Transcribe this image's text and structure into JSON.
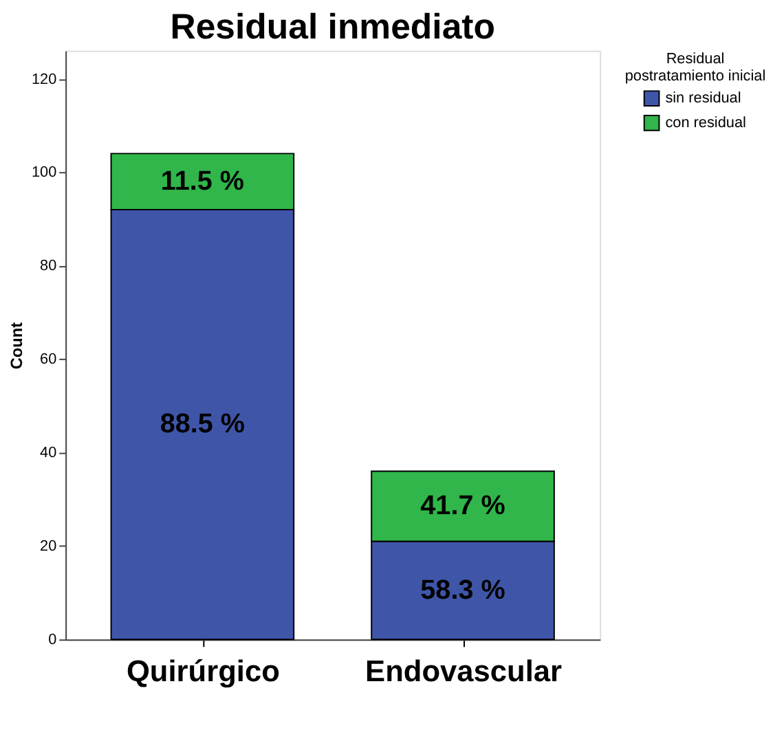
{
  "chart_data": {
    "type": "bar",
    "title": "Residual inmediato",
    "ylabel": "Count",
    "legend_title": "Residual postratamiento inicial",
    "categories": [
      "Quirúrgico",
      "Endovascular"
    ],
    "stacked": true,
    "series": [
      {
        "name": "sin residual",
        "color": "#3f56a8",
        "values": [
          92,
          21
        ]
      },
      {
        "name": "con residual",
        "color": "#30b64a",
        "values": [
          12,
          15
        ]
      }
    ],
    "annotations": [
      "88.5 %",
      "58.3 %",
      "11.5 %",
      "41.7 %"
    ],
    "ylim": [
      0,
      126
    ],
    "yticks": [
      0,
      20,
      40,
      60,
      80,
      100,
      120
    ],
    "grid": false,
    "legend": "top right"
  }
}
